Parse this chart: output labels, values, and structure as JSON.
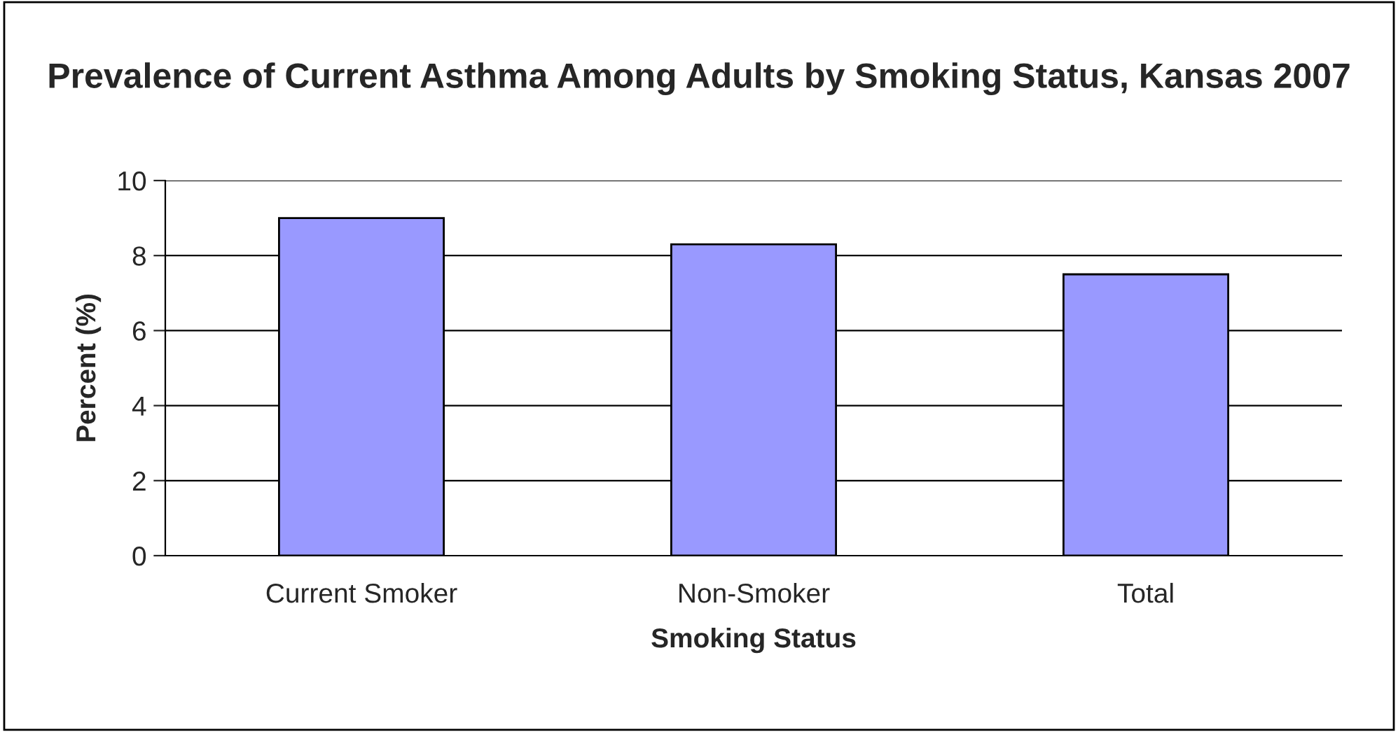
{
  "chart_data": {
    "type": "bar",
    "title": "Prevalence of Current Asthma Among Adults by Smoking Status, Kansas 2007",
    "xlabel": "Smoking Status",
    "ylabel": "Percent (%)",
    "categories": [
      "Current Smoker",
      "Non-Smoker",
      "Total"
    ],
    "values": [
      9.0,
      8.3,
      7.5
    ],
    "color": "#9999ff",
    "ylim": [
      0,
      10
    ],
    "yticks": [
      0,
      2,
      4,
      6,
      8,
      10
    ],
    "grid": "y",
    "legend": false
  }
}
